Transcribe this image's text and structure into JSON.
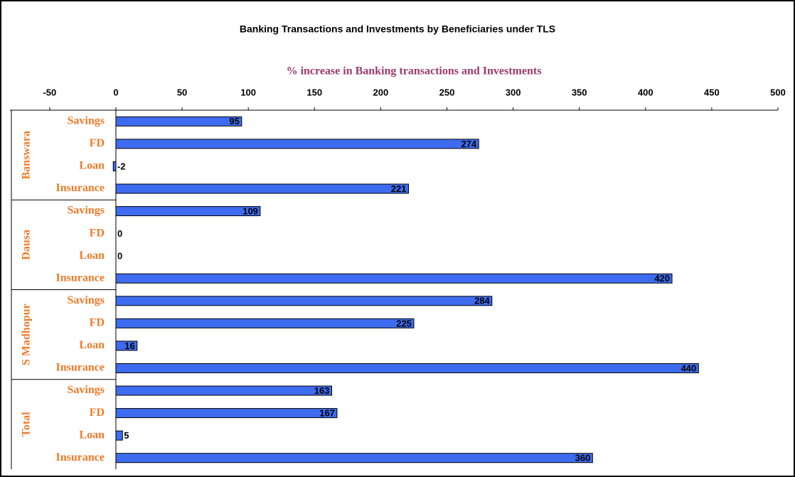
{
  "chart_data": {
    "type": "bar",
    "title": "Banking Transactions and Investments by Beneficiaries under TLS",
    "x_label": "% increase in Banking transactions and Investments",
    "color": "#3d6cf0",
    "groups": [
      {
        "name": "Banswara",
        "categories": [
          "Savings",
          "FD",
          "Loan",
          "Insurance"
        ],
        "values": [
          95,
          274,
          -2,
          221
        ]
      },
      {
        "name": "Dausa",
        "categories": [
          "Savings",
          "FD",
          "Loan",
          "Insurance"
        ],
        "values": [
          109,
          0,
          0,
          420
        ]
      },
      {
        "name": "S Madhopur",
        "categories": [
          "Savings",
          "FD",
          "Loan",
          "Insurance"
        ],
        "values": [
          284,
          225,
          16,
          440
        ]
      },
      {
        "name": "Total",
        "categories": [
          "Savings",
          "FD",
          "Loan",
          "Insurance"
        ],
        "values": [
          163,
          167,
          5,
          360
        ]
      }
    ],
    "xlim": [
      -80,
      500
    ],
    "xticks": [
      -50,
      0,
      50,
      100,
      150,
      200,
      250,
      300,
      350,
      400,
      450,
      500
    ]
  }
}
